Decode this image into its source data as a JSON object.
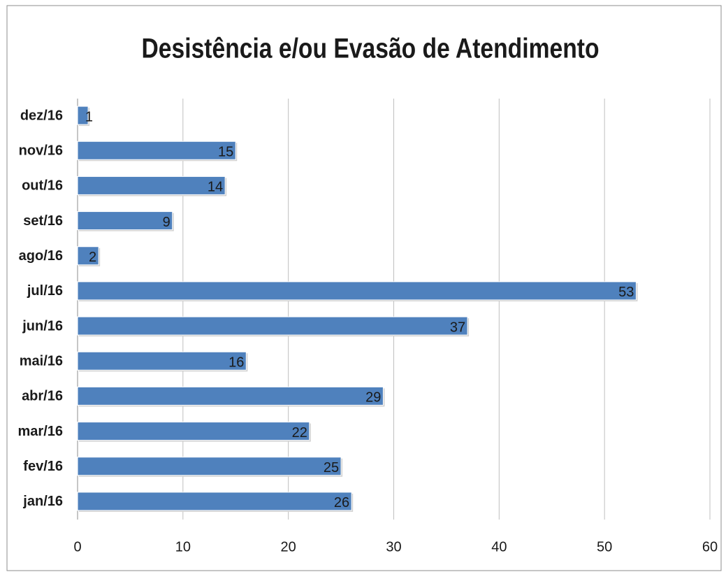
{
  "chart_data": {
    "type": "bar",
    "title": "Desistência e/ou Evasão de Atendimento",
    "categories": [
      "jan/16",
      "fev/16",
      "mar/16",
      "abr/16",
      "mai/16",
      "jun/16",
      "jul/16",
      "ago/16",
      "set/16",
      "out/16",
      "nov/16",
      "dez/16"
    ],
    "values": [
      26,
      25,
      22,
      29,
      16,
      37,
      53,
      2,
      9,
      14,
      15,
      1
    ],
    "color": "#4f81bd",
    "xlim": [
      0,
      60
    ],
    "xticks": [
      0,
      10,
      20,
      30,
      40,
      50,
      60
    ],
    "grid": true
  }
}
